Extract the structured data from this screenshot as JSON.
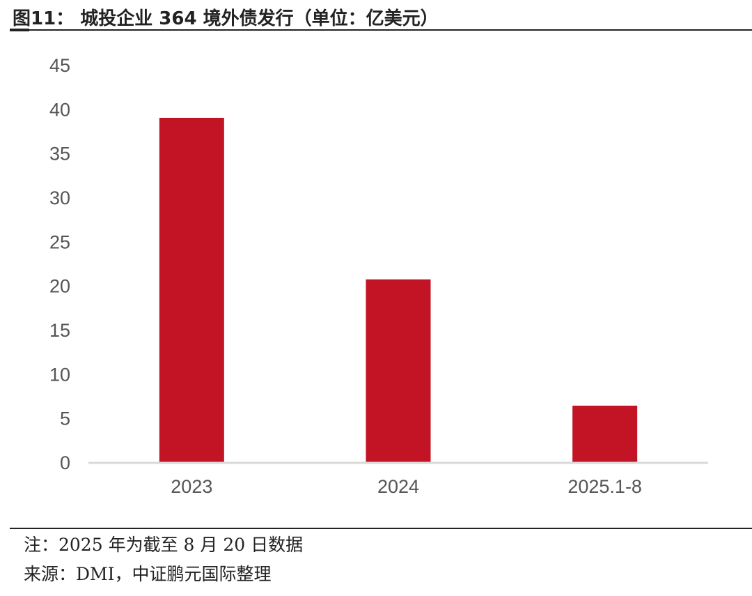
{
  "header": {
    "title": "图11： 城投企业 364 境外债发行（单位：亿美元）"
  },
  "footer": {
    "note": "注：2025 年为截至 8 月 20 日数据",
    "source": "来源：DMI，中证鹏元国际整理"
  },
  "colors": {
    "bar": "#c21424",
    "axis": "#d9d9d9",
    "text": "#555555"
  },
  "chart_data": {
    "type": "bar",
    "categories": [
      "2023",
      "2024",
      "2025.1-8"
    ],
    "values": [
      39,
      20.7,
      6.4
    ],
    "ylim": [
      0,
      45
    ],
    "yticks": [
      "0",
      "5",
      "10",
      "15",
      "20",
      "25",
      "30",
      "35",
      "40",
      "45"
    ],
    "grid": false,
    "legend": "none"
  }
}
